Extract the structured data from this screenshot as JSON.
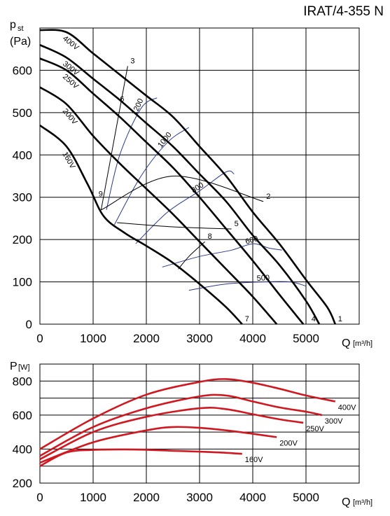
{
  "title": "IRAT/4-355 N",
  "chart_data": [
    {
      "type": "line",
      "ylabel_main": "p",
      "ylabel_sub": "st",
      "ylabel_unit": "(Pa)",
      "xlabel": "Q",
      "xunit": "[m³/h]",
      "xlim": [
        0,
        6000
      ],
      "ylim": [
        0,
        700
      ],
      "x_ticks": [
        "0",
        "1000",
        "2000",
        "3000",
        "4000",
        "5000"
      ],
      "y_ticks": [
        "0",
        "100",
        "200",
        "300",
        "400",
        "500",
        "600"
      ],
      "grid": true,
      "series": [
        {
          "name": "400V",
          "points": [
            [
              0,
              695
            ],
            [
              500,
              690
            ],
            [
              1000,
              640
            ],
            [
              1500,
              590
            ],
            [
              2000,
              540
            ],
            [
              2500,
              490
            ],
            [
              3000,
              420
            ],
            [
              3500,
              350
            ],
            [
              4000,
              265
            ],
            [
              4500,
              190
            ],
            [
              5000,
              105
            ],
            [
              5400,
              40
            ],
            [
              5550,
              0
            ]
          ]
        },
        {
          "name": "300V",
          "points": [
            [
              0,
              660
            ],
            [
              500,
              630
            ],
            [
              1000,
              580
            ],
            [
              1500,
              530
            ],
            [
              2000,
              475
            ],
            [
              2500,
              420
            ],
            [
              3000,
              355
            ],
            [
              3500,
              290
            ],
            [
              4000,
              210
            ],
            [
              4500,
              140
            ],
            [
              5000,
              55
            ],
            [
              5250,
              0
            ]
          ]
        },
        {
          "name": "250V",
          "points": [
            [
              0,
              628
            ],
            [
              500,
              600
            ],
            [
              1000,
              545
            ],
            [
              1500,
              490
            ],
            [
              2000,
              430
            ],
            [
              2500,
              370
            ],
            [
              3000,
              300
            ],
            [
              3500,
              225
            ],
            [
              4000,
              150
            ],
            [
              4500,
              70
            ],
            [
              4950,
              0
            ]
          ]
        },
        {
          "name": "200V",
          "points": [
            [
              0,
              560
            ],
            [
              500,
              520
            ],
            [
              1000,
              445
            ],
            [
              1500,
              380
            ],
            [
              2000,
              320
            ],
            [
              2500,
              260
            ],
            [
              3000,
              195
            ],
            [
              3500,
              130
            ],
            [
              4000,
              65
            ],
            [
              4450,
              0
            ]
          ]
        },
        {
          "name": "160V",
          "points": [
            [
              0,
              470
            ],
            [
              500,
              420
            ],
            [
              900,
              330
            ],
            [
              1200,
              255
            ],
            [
              1600,
              215
            ],
            [
              2000,
              185
            ],
            [
              2500,
              145
            ],
            [
              3000,
              95
            ],
            [
              3500,
              40
            ],
            [
              3800,
              0
            ]
          ]
        }
      ],
      "system_curves": [
        {
          "label": "1",
          "points": [
            [
              5550,
              0
            ]
          ]
        },
        {
          "label": "2",
          "points": [
            [
              1150,
              270
            ],
            [
              2500,
              350
            ],
            [
              4200,
              290
            ]
          ]
        },
        {
          "label": "3",
          "points": [
            [
              1150,
              270
            ],
            [
              1400,
              440
            ],
            [
              1650,
              610
            ]
          ]
        },
        {
          "label": "4",
          "points": [
            [
              5050,
              0
            ]
          ]
        },
        {
          "label": "5",
          "points": [
            [
              1450,
              240
            ],
            [
              2500,
              230
            ],
            [
              3600,
              225
            ]
          ]
        },
        {
          "label": "6",
          "points": [
            [
              1450,
              520
            ]
          ]
        },
        {
          "label": "7",
          "points": [
            [
              3800,
              0
            ]
          ]
        },
        {
          "label": "8",
          "points": [
            [
              2600,
              130
            ],
            [
              2800,
              160
            ],
            [
              3100,
              195
            ]
          ]
        },
        {
          "label": "9",
          "points": [
            [
              1050,
              295
            ]
          ]
        }
      ],
      "speed_isolines": [
        {
          "label": "1200",
          "points": [
            [
              1250,
              270
            ],
            [
              1500,
              400
            ],
            [
              1900,
              510
            ],
            [
              2200,
              535
            ]
          ]
        },
        {
          "label": "1000",
          "points": [
            [
              1400,
              235
            ],
            [
              1900,
              350
            ],
            [
              2400,
              430
            ],
            [
              2800,
              465
            ]
          ]
        },
        {
          "label": "800",
          "points": [
            [
              1800,
              190
            ],
            [
              2400,
              265
            ],
            [
              3000,
              315
            ],
            [
              3500,
              360
            ],
            [
              3650,
              355
            ]
          ]
        },
        {
          "label": "600",
          "points": [
            [
              2300,
              135
            ],
            [
              3000,
              160
            ],
            [
              3600,
              175
            ],
            [
              4000,
              190
            ],
            [
              4300,
              180
            ],
            [
              4550,
              175
            ]
          ]
        },
        {
          "label": "500",
          "points": [
            [
              2800,
              80
            ],
            [
              3500,
              95
            ],
            [
              4200,
              100
            ],
            [
              4700,
              100
            ],
            [
              5000,
              90
            ]
          ]
        }
      ]
    },
    {
      "type": "line",
      "ylabel": "P",
      "yunit": "[W]",
      "xlabel": "Q",
      "xunit": "[m³/h]",
      "xlim": [
        0,
        6000
      ],
      "ylim": [
        200,
        900
      ],
      "x_ticks": [
        "0",
        "1000",
        "2000",
        "3000",
        "4000",
        "5000"
      ],
      "y_ticks": [
        "200",
        "400",
        "600",
        "800"
      ],
      "grid": true,
      "series": [
        {
          "name": "400V",
          "points": [
            [
              0,
              400
            ],
            [
              1000,
              580
            ],
            [
              2000,
              720
            ],
            [
              3000,
              795
            ],
            [
              3500,
              812
            ],
            [
              4000,
              790
            ],
            [
              4500,
              755
            ],
            [
              5000,
              715
            ],
            [
              5550,
              680
            ]
          ]
        },
        {
          "name": "300V",
          "points": [
            [
              0,
              360
            ],
            [
              1000,
              530
            ],
            [
              2000,
              640
            ],
            [
              3000,
              710
            ],
            [
              3500,
              715
            ],
            [
              4000,
              680
            ],
            [
              4500,
              645
            ],
            [
              5000,
              620
            ],
            [
              5300,
              600
            ]
          ]
        },
        {
          "name": "250V",
          "points": [
            [
              0,
              340
            ],
            [
              1000,
              500
            ],
            [
              2000,
              590
            ],
            [
              3000,
              640
            ],
            [
              3500,
              635
            ],
            [
              4000,
              605
            ],
            [
              4500,
              575
            ],
            [
              4950,
              555
            ]
          ]
        },
        {
          "name": "200V",
          "points": [
            [
              0,
              320
            ],
            [
              1000,
              440
            ],
            [
              2000,
              510
            ],
            [
              2500,
              530
            ],
            [
              3000,
              525
            ],
            [
              3500,
              510
            ],
            [
              4000,
              490
            ],
            [
              4450,
              470
            ]
          ]
        },
        {
          "name": "160V",
          "points": [
            [
              0,
              300
            ],
            [
              500,
              380
            ],
            [
              1000,
              395
            ],
            [
              1600,
              398
            ],
            [
              2000,
              396
            ],
            [
              2500,
              390
            ],
            [
              3000,
              385
            ],
            [
              3500,
              378
            ],
            [
              3800,
              372
            ]
          ]
        }
      ]
    }
  ]
}
